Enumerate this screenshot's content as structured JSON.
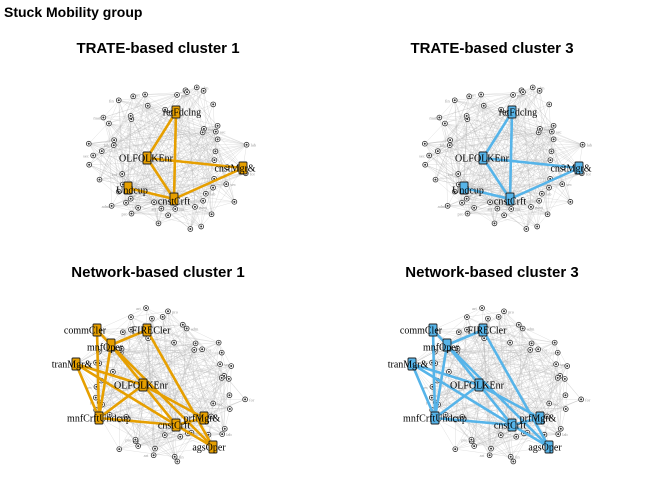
{
  "figure": {
    "title": "Stuck Mobility group"
  },
  "colors": {
    "orange": "#E69F00",
    "blue": "#56B4E9",
    "grey_edge": "#b8b8b8",
    "node_fill": "#333333"
  },
  "chart_data": [
    {
      "type": "network",
      "title": "TRATE-based cluster 1",
      "highlight_color": "#E69F00",
      "highlighted_nodes": [
        {
          "id": "retFdclng",
          "label": "retFdclng"
        },
        {
          "id": "OLFOLKEnr",
          "label": "OLFOLKEnr"
        },
        {
          "id": "cnstMgr&",
          "label": "cnstMgr&"
        },
        {
          "id": "Undcup",
          "label": "Undcup"
        },
        {
          "id": "cnstCrft",
          "label": "cnstCrft"
        }
      ],
      "highlighted_edges": [
        [
          "retFdclng",
          "OLFOLKEnr"
        ],
        [
          "retFdclng",
          "cnstCrft"
        ],
        [
          "OLFOLKEnr",
          "cnstMgr&"
        ],
        [
          "OLFOLKEnr",
          "cnstCrft"
        ],
        [
          "cnstCrft",
          "cnstMgr&"
        ],
        [
          "Undcup",
          "cnstCrft"
        ]
      ]
    },
    {
      "type": "network",
      "title": "TRATE-based cluster 3",
      "highlight_color": "#56B4E9",
      "highlighted_nodes": [
        {
          "id": "retFdclng",
          "label": "retFdclng"
        },
        {
          "id": "OLFOLKEnr",
          "label": "OLFOLKEnr"
        },
        {
          "id": "cnstMgr&",
          "label": "cnstMgr&"
        },
        {
          "id": "Undcup",
          "label": "Undcup"
        },
        {
          "id": "cnstCrft",
          "label": "cnstCrft"
        }
      ],
      "highlighted_edges": [
        [
          "retFdclng",
          "OLFOLKEnr"
        ],
        [
          "retFdclng",
          "cnstCrft"
        ],
        [
          "OLFOLKEnr",
          "cnstMgr&"
        ],
        [
          "OLFOLKEnr",
          "cnstCrft"
        ],
        [
          "cnstCrft",
          "cnstMgr&"
        ],
        [
          "Undcup",
          "cnstCrft"
        ]
      ]
    },
    {
      "type": "network",
      "title": "Network-based cluster 1",
      "highlight_color": "#E69F00",
      "highlighted_nodes": [
        {
          "id": "commCler",
          "label": "commCler"
        },
        {
          "id": "FIRECler",
          "label": "FIRECler"
        },
        {
          "id": "mnfOper",
          "label": "mnfOper"
        },
        {
          "id": "tranMgr&",
          "label": "tranMgr&"
        },
        {
          "id": "OLFOLKEnr",
          "label": "OLFOLKEnr"
        },
        {
          "id": "mnfCrftUndcup",
          "label": "mnfCrftUndcup"
        },
        {
          "id": "prfMgr&",
          "label": "prfMgr&"
        },
        {
          "id": "cnstCrft",
          "label": "cnstCrft"
        },
        {
          "id": "agsOper",
          "label": "agsOper"
        }
      ],
      "highlighted_edges": [
        [
          "commCler",
          "mnfOper"
        ],
        [
          "FIRECler",
          "mnfOper"
        ],
        [
          "FIRECler",
          "agsOper"
        ],
        [
          "mnfOper",
          "mnfCrftUndcup"
        ],
        [
          "mnfOper",
          "cnstCrft"
        ],
        [
          "mnfOper",
          "agsOper"
        ],
        [
          "tranMgr&",
          "mnfCrftUndcup"
        ],
        [
          "tranMgr&",
          "cnstCrft"
        ],
        [
          "tranMgr&",
          "OLFOLKEnr"
        ],
        [
          "OLFOLKEnr",
          "prfMgr&"
        ],
        [
          "OLFOLKEnr",
          "mnfCrftUndcup"
        ],
        [
          "mnfCrftUndcup",
          "cnstCrft"
        ],
        [
          "cnstCrft",
          "prfMgr&"
        ],
        [
          "cnstCrft",
          "agsOper"
        ],
        [
          "commCler",
          "mnfCrftUndcup"
        ]
      ]
    },
    {
      "type": "network",
      "title": "Network-based cluster 3",
      "highlight_color": "#56B4E9",
      "highlighted_nodes": [
        {
          "id": "commCler",
          "label": "commCler"
        },
        {
          "id": "FIRECler",
          "label": "FIRECler"
        },
        {
          "id": "mnfOper",
          "label": "mnfOper"
        },
        {
          "id": "tranMgr&",
          "label": "tranMgr&"
        },
        {
          "id": "OLFOLKEnr",
          "label": "OLFOLKEnr"
        },
        {
          "id": "mnfCrftUndcup",
          "label": "mnfCrftUndcup"
        },
        {
          "id": "prfMgr&",
          "label": "prfMgr&"
        },
        {
          "id": "cnstCrft",
          "label": "cnstCrft"
        },
        {
          "id": "agsOper",
          "label": "agsOper"
        }
      ],
      "highlighted_edges": [
        [
          "commCler",
          "mnfOper"
        ],
        [
          "FIRECler",
          "mnfOper"
        ],
        [
          "FIRECler",
          "agsOper"
        ],
        [
          "mnfOper",
          "mnfCrftUndcup"
        ],
        [
          "mnfOper",
          "cnstCrft"
        ],
        [
          "mnfOper",
          "agsOper"
        ],
        [
          "tranMgr&",
          "mnfCrftUndcup"
        ],
        [
          "tranMgr&",
          "cnstCrft"
        ],
        [
          "tranMgr&",
          "OLFOLKEnr"
        ],
        [
          "OLFOLKEnr",
          "prfMgr&"
        ],
        [
          "OLFOLKEnr",
          "mnfCrftUndcup"
        ],
        [
          "mnfCrftUndcup",
          "cnstCrft"
        ],
        [
          "cnstCrft",
          "prfMgr&"
        ],
        [
          "cnstCrft",
          "agsOper"
        ],
        [
          "commCler",
          "mnfCrftUndcup"
        ]
      ]
    }
  ]
}
